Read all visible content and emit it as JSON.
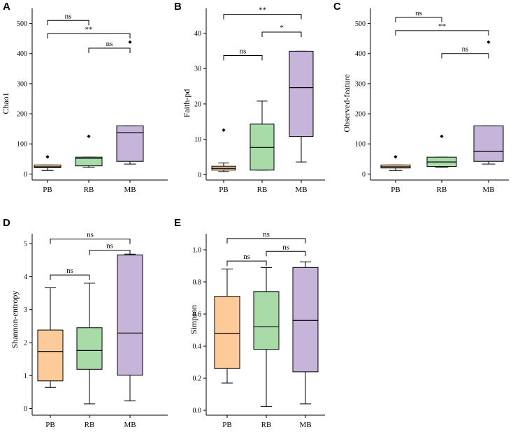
{
  "colors": {
    "PB": "#FDCB9A",
    "RB": "#A8DBA8",
    "MB": "#C6B4DA"
  },
  "chart_data": [
    {
      "type": "box",
      "panel": "A",
      "ylabel": "Chao1",
      "ylim": [
        -20,
        550
      ],
      "yticks": [
        0,
        100,
        200,
        300,
        400,
        500
      ],
      "categories": [
        "PB",
        "RB",
        "MB"
      ],
      "boxes": [
        {
          "min": 12,
          "q1": 21,
          "median": 24,
          "q3": 30,
          "max": 30,
          "outliers": [
            57
          ]
        },
        {
          "min": 22,
          "q1": 27,
          "median": 52,
          "q3": 56,
          "max": 56,
          "outliers": [
            125
          ]
        },
        {
          "min": 33,
          "q1": 42,
          "median": 137,
          "q3": 160,
          "max": 160,
          "outliers": [
            438
          ]
        }
      ],
      "brackets": [
        {
          "from": 0,
          "to": 1,
          "y": 510,
          "label": "ns"
        },
        {
          "from": 0,
          "to": 2,
          "y": 466,
          "label": "**"
        },
        {
          "from": 1,
          "to": 2,
          "y": 418,
          "label": "ns"
        }
      ]
    },
    {
      "type": "box",
      "panel": "B",
      "ylabel": "Faith-pd",
      "ylim": [
        -1.5,
        47
      ],
      "yticks": [
        0,
        10,
        20,
        30,
        40
      ],
      "categories": [
        "PB",
        "RB",
        "MB"
      ],
      "boxes": [
        {
          "min": 0.9,
          "q1": 1.3,
          "median": 1.8,
          "q3": 2.4,
          "max": 3.3,
          "outliers": [
            12.6
          ]
        },
        {
          "min": 1.3,
          "q1": 1.3,
          "median": 7.7,
          "q3": 14.3,
          "max": 20.8,
          "outliers": []
        },
        {
          "min": 3.6,
          "q1": 10.8,
          "median": 24.6,
          "q3": 34.9,
          "max": 34.9,
          "outliers": []
        }
      ],
      "brackets": [
        {
          "from": 0,
          "to": 2,
          "y": 45.3,
          "label": "**"
        },
        {
          "from": 1,
          "to": 2,
          "y": 40.3,
          "label": "*"
        },
        {
          "from": 0,
          "to": 1,
          "y": 33.7,
          "label": "ns"
        }
      ]
    },
    {
      "type": "box",
      "panel": "C",
      "ylabel": "Observed-feature",
      "ylim": [
        -20,
        550
      ],
      "yticks": [
        0,
        100,
        200,
        300,
        400,
        500
      ],
      "categories": [
        "PB",
        "RB",
        "MB"
      ],
      "boxes": [
        {
          "min": 12,
          "q1": 20,
          "median": 24,
          "q3": 30,
          "max": 30,
          "outliers": [
            57
          ]
        },
        {
          "min": 22,
          "q1": 25,
          "median": 40,
          "q3": 56,
          "max": 56,
          "outliers": [
            125
          ]
        },
        {
          "min": 33,
          "q1": 42,
          "median": 75,
          "q3": 160,
          "max": 160,
          "outliers": [
            438
          ]
        }
      ],
      "brackets": [
        {
          "from": 0,
          "to": 1,
          "y": 520,
          "label": "ns"
        },
        {
          "from": 0,
          "to": 2,
          "y": 476,
          "label": "**"
        },
        {
          "from": 1,
          "to": 2,
          "y": 400,
          "label": "ns"
        }
      ]
    },
    {
      "type": "box",
      "panel": "D",
      "ylabel": "Shannon-entropy",
      "ylim": [
        -0.2,
        5.3
      ],
      "yticks": [
        0,
        1,
        2,
        3,
        4,
        5
      ],
      "categories": [
        "PB",
        "RB",
        "MB"
      ],
      "boxes": [
        {
          "min": 0.64,
          "q1": 0.84,
          "median": 1.73,
          "q3": 2.38,
          "max": 3.66,
          "outliers": []
        },
        {
          "min": 0.14,
          "q1": 1.19,
          "median": 1.76,
          "q3": 2.45,
          "max": 3.8,
          "outliers": []
        },
        {
          "min": 0.23,
          "q1": 1.01,
          "median": 2.29,
          "q3": 4.66,
          "max": 4.68,
          "outliers": []
        }
      ],
      "brackets": [
        {
          "from": 0,
          "to": 2,
          "y": 5.14,
          "label": "ns"
        },
        {
          "from": 1,
          "to": 2,
          "y": 4.8,
          "label": "ns"
        },
        {
          "from": 0,
          "to": 1,
          "y": 4.05,
          "label": "ns"
        }
      ]
    },
    {
      "type": "box",
      "panel": "E",
      "ylabel": "Simpson",
      "ylim": [
        -0.03,
        1.1
      ],
      "yticks": [
        0.0,
        0.2,
        0.4,
        0.6,
        0.8,
        1.0
      ],
      "categories": [
        "PB",
        "RB",
        "MB"
      ],
      "boxes": [
        {
          "min": 0.17,
          "q1": 0.26,
          "median": 0.48,
          "q3": 0.71,
          "max": 0.88,
          "outliers": []
        },
        {
          "min": 0.025,
          "q1": 0.38,
          "median": 0.52,
          "q3": 0.74,
          "max": 0.89,
          "outliers": []
        },
        {
          "min": 0.04,
          "q1": 0.24,
          "median": 0.56,
          "q3": 0.89,
          "max": 0.925,
          "outliers": []
        }
      ],
      "brackets": [
        {
          "from": 0,
          "to": 2,
          "y": 1.07,
          "label": "ns"
        },
        {
          "from": 1,
          "to": 2,
          "y": 0.99,
          "label": "ns"
        },
        {
          "from": 0,
          "to": 1,
          "y": 0.93,
          "label": "ns"
        }
      ]
    }
  ]
}
